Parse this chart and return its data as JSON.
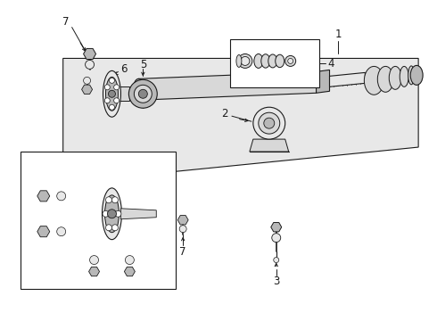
{
  "bg_color": "#ffffff",
  "line_color": "#1a1a1a",
  "fig_width": 4.9,
  "fig_height": 3.6,
  "dpi": 100,
  "shaft_gray": "#d8d8d8",
  "dark_gray": "#888888",
  "mid_gray": "#b8b8b8",
  "light_gray": "#e8e8e8"
}
